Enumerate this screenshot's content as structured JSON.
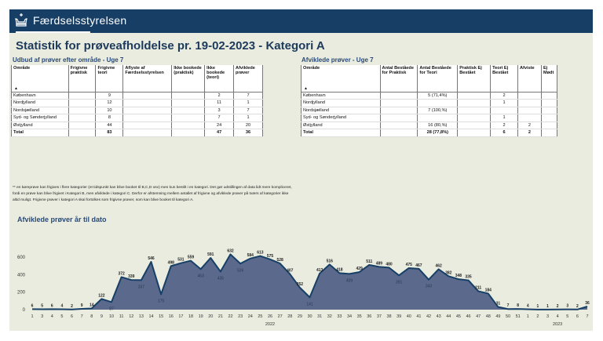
{
  "header": {
    "brand": "Færdselsstyrelsen"
  },
  "title": "Statistik for prøveafholdelse pr. 19-02-2023 - Kategori A",
  "supply": {
    "title": "Udbud af prøver efter område - Uge 7",
    "columns": [
      "Område",
      "Frigivne praktisk",
      "Frigivne teori",
      "Aflyste af Færdselsstyrelsen",
      "Ikke bookede (praktisk)",
      "Ikke bookede (teori)",
      "Afviklede prøver"
    ],
    "rows": [
      [
        "København",
        "",
        "9",
        "",
        "",
        "2",
        "7"
      ],
      [
        "Nordjylland",
        "",
        "12",
        "",
        "",
        "11",
        "1"
      ],
      [
        "Nordsjælland",
        "",
        "10",
        "",
        "",
        "3",
        "7"
      ],
      [
        "Syd- og Sønderjylland",
        "",
        "8",
        "",
        "",
        "7",
        "1"
      ],
      [
        "Østjylland",
        "",
        "44",
        "",
        "",
        "24",
        "20"
      ]
    ],
    "total": [
      "Total",
      "",
      "83",
      "",
      "",
      "47",
      "36"
    ]
  },
  "completed": {
    "title": "Afviklede prøver - Uge 7",
    "columns": [
      "Område",
      "Antal Beståede for Praktisk",
      "Antal Beståede for Teori",
      "Praktisk Ej Bestået",
      "Teori Ej Bestået",
      "Afviste",
      "Ej Mødt"
    ],
    "rows": [
      [
        "København",
        "",
        "5 (71,4%)",
        "",
        "2",
        "",
        ""
      ],
      [
        "Nordjylland",
        "",
        "",
        "",
        "1",
        "",
        ""
      ],
      [
        "Nordsjælland",
        "",
        "7 (100,%)",
        "",
        "",
        "",
        ""
      ],
      [
        "Syd- og Sønderjylland",
        "",
        "",
        "",
        "1",
        "",
        ""
      ],
      [
        "Østjylland",
        "",
        "16 (80,%)",
        "",
        "2",
        "2",
        ""
      ]
    ],
    "total": [
      "Total",
      "",
      "28 (77,8%)",
      "",
      "6",
      "2",
      ""
    ]
  },
  "sort_icon": "▲",
  "note": "** en køreprøve kan frigives i flere kategorier (et tidspunkt kan blive booket til B,C,D osv) men kun bestilt i en kategori. Det gør udstillingen af data lidt mere kompliceret, fordi en prøve kan blive frigivet i Kategori B, men afviklede i kategori C. Derfor er afstemning mellem antallet af frigivne og afviklede prøver på tværs af kategorier ikke altid muligt. Frigivne prøver i kategori A skal fortolkes som frigivne prøver, som kan blive booket til kategori A.",
  "chart_data": {
    "type": "area",
    "title": "Afviklede prøver år til dato",
    "xlabel": "",
    "ylabel": "",
    "ylim": [
      0,
      650
    ],
    "yticks": [
      0,
      200,
      400,
      600
    ],
    "grid": false,
    "categories": [
      "1",
      "3",
      "4",
      "5",
      "6",
      "7",
      "8",
      "9",
      "10",
      "11",
      "12",
      "13",
      "14",
      "15",
      "16",
      "17",
      "18",
      "19",
      "20",
      "21",
      "22",
      "23",
      "24",
      "25",
      "26",
      "27",
      "28",
      "29",
      "30",
      "31",
      "32",
      "33",
      "34",
      "35",
      "36",
      "37",
      "38",
      "39",
      "40",
      "41",
      "42",
      "43",
      "44",
      "45",
      "46",
      "47",
      "48",
      "49",
      "50",
      "51",
      "1",
      "2",
      "3",
      "4",
      "5",
      "6",
      "7"
    ],
    "values": [
      6,
      5,
      6,
      4,
      2,
      9,
      14,
      122,
      87,
      372,
      339,
      337,
      546,
      175,
      498,
      531,
      559,
      463,
      591,
      435,
      632,
      526,
      584,
      613,
      575,
      528,
      407,
      252,
      141,
      413,
      516,
      418,
      409,
      429,
      511,
      489,
      480,
      391,
      475,
      467,
      343,
      462,
      382,
      348,
      335,
      211,
      184,
      31,
      7,
      8,
      4,
      1,
      1,
      2,
      3,
      2,
      36
    ],
    "year_labels": [
      {
        "label": "2022",
        "at": "26"
      },
      {
        "label": "2023",
        "at": "4"
      }
    ],
    "fill": "#5b6a8c",
    "line": "#173f66"
  }
}
